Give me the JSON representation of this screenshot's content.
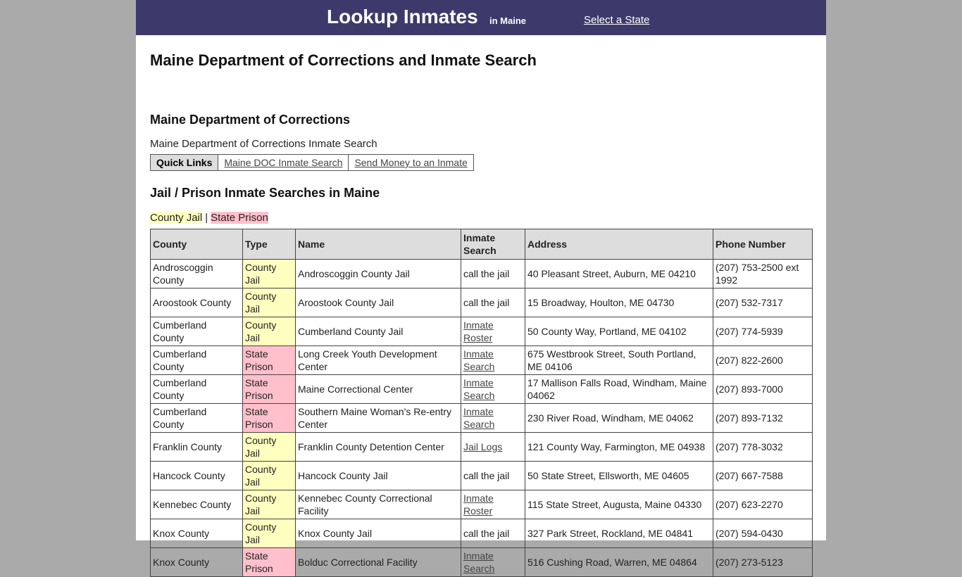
{
  "header": {
    "title": "Lookup Inmates",
    "state": "in Maine",
    "select": "Select a State"
  },
  "page_title": "Maine Department of Corrections and Inmate Search",
  "doc_section": {
    "heading": "Maine Department of Corrections",
    "text": "Maine Department of Corrections Inmate Search",
    "quick_links": {
      "label": "Quick Links",
      "links": [
        "Maine DOC Inmate Search",
        "Send Money to an Inmate"
      ]
    }
  },
  "searches": {
    "heading": "Jail / Prison Inmate Searches in Maine",
    "legend": [
      {
        "label": "County Jail",
        "color": "#ffffc0"
      },
      {
        "label": "State Prison",
        "color": "#ffc0cb"
      }
    ],
    "legend_separator": "|"
  },
  "table": {
    "headers": [
      "County",
      "Type",
      "Name",
      "Inmate Search",
      "Address",
      "Phone Number"
    ],
    "rows": [
      [
        "Androscoggin County",
        "County Jail",
        "Androscoggin County Jail",
        "call the jail",
        "40 Pleasant Street, Auburn, ME 04210",
        "(207) 753-2500 ext 1992"
      ],
      [
        "Aroostook County",
        "County Jail",
        "Aroostook County Jail",
        "call the jail",
        "15 Broadway, Houlton, ME 04730",
        "(207) 532-7317"
      ],
      [
        "Cumberland County",
        "County Jail",
        "Cumberland County Jail",
        {
          "link": "Inmate Roster"
        },
        "50 County Way, Portland, ME 04102",
        "(207) 774-5939"
      ],
      [
        "Cumberland County",
        "State Prison",
        "Long Creek Youth Development Center",
        {
          "link": "Inmate Search"
        },
        "675 Westbrook Street, South Portland, ME 04106",
        "(207) 822-2600"
      ],
      [
        "Cumberland County",
        "State Prison",
        "Maine Correctional Center",
        {
          "link": "Inmate Search"
        },
        "17 Mallison Falls Road, Windham, Maine 04062",
        "(207) 893-7000"
      ],
      [
        "Cumberland County",
        "State Prison",
        "Southern Maine Woman's Re-entry Center",
        {
          "link": "Inmate Search"
        },
        "230 River Road, Windham, ME 04062",
        "(207) 893-7132"
      ],
      [
        "Franklin County",
        "County Jail",
        "Franklin County Detention Center",
        {
          "link": "Jail Logs"
        },
        "121 County Way, Farmington, ME 04938",
        "(207) 778-3032"
      ],
      [
        "Hancock County",
        "County Jail",
        "Hancock County Jail",
        "call the jail",
        "50 State Street, Ellsworth, ME 04605",
        "(207) 667-7588"
      ],
      [
        "Kennebec County",
        "County Jail",
        "Kennebec County Correctional Facility",
        {
          "link": "Inmate Roster"
        },
        "115 State Street, Augusta, Maine 04330",
        "(207) 623-2270"
      ],
      [
        "Knox County",
        "County Jail",
        "Knox County Jail",
        "call the jail",
        "327 Park Street, Rockland, ME 04841",
        "(207) 594-0430"
      ],
      [
        "Knox County",
        "State Prison",
        "Bolduc Correctional Facility",
        {
          "link": "Inmate Search"
        },
        "516 Cushing Road, Warren, ME 04864",
        "(207) 273-5123"
      ]
    ]
  }
}
